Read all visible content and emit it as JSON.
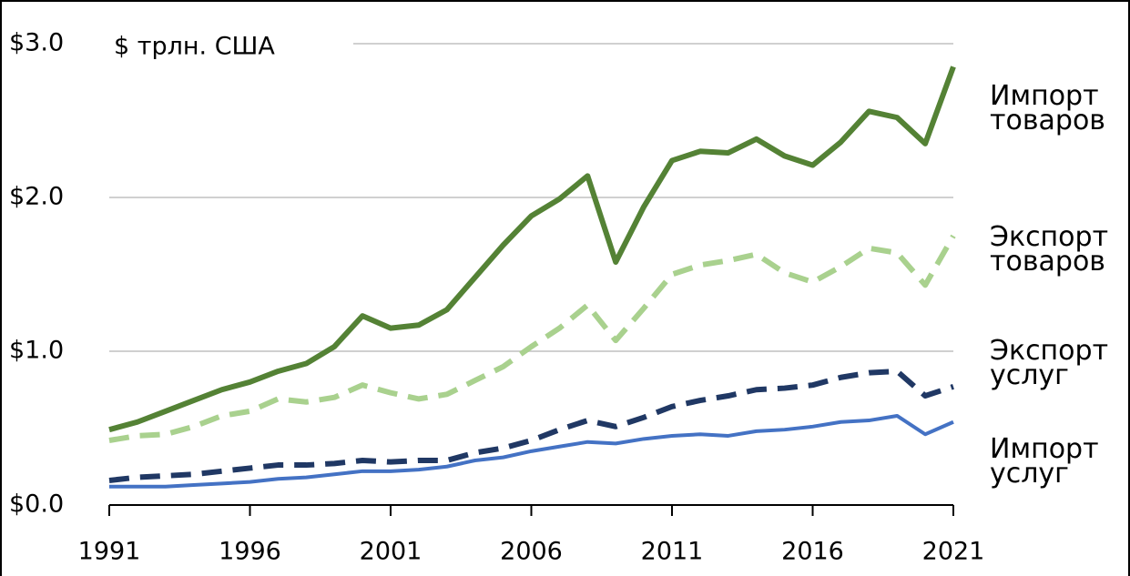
{
  "chart_data": {
    "type": "line",
    "ylabel": "$ трлн. США",
    "x": [
      1991,
      1992,
      1993,
      1994,
      1995,
      1996,
      1997,
      1998,
      1999,
      2000,
      2001,
      2002,
      2003,
      2004,
      2005,
      2006,
      2007,
      2008,
      2009,
      2010,
      2011,
      2012,
      2013,
      2014,
      2015,
      2016,
      2017,
      2018,
      2019,
      2020,
      2021
    ],
    "series": [
      {
        "name": "Импорт товаров",
        "color": "#548235",
        "dash": false,
        "values": [
          0.49,
          0.54,
          0.61,
          0.68,
          0.75,
          0.8,
          0.87,
          0.92,
          1.03,
          1.23,
          1.15,
          1.17,
          1.27,
          1.48,
          1.69,
          1.88,
          1.99,
          2.14,
          1.58,
          1.94,
          2.24,
          2.3,
          2.29,
          2.38,
          2.27,
          2.21,
          2.36,
          2.56,
          2.52,
          2.35,
          2.85
        ]
      },
      {
        "name": "Экспорт товаров",
        "color": "#a9d18e",
        "dash": true,
        "values": [
          0.42,
          0.45,
          0.46,
          0.51,
          0.58,
          0.61,
          0.69,
          0.67,
          0.7,
          0.78,
          0.73,
          0.69,
          0.72,
          0.81,
          0.9,
          1.03,
          1.15,
          1.3,
          1.07,
          1.28,
          1.5,
          1.56,
          1.59,
          1.63,
          1.51,
          1.45,
          1.55,
          1.67,
          1.64,
          1.43,
          1.75
        ]
      },
      {
        "name": "Экспорт услуг",
        "color": "#203864",
        "dash": true,
        "values": [
          0.16,
          0.18,
          0.19,
          0.2,
          0.22,
          0.24,
          0.26,
          0.26,
          0.27,
          0.29,
          0.28,
          0.29,
          0.29,
          0.34,
          0.37,
          0.42,
          0.49,
          0.55,
          0.51,
          0.57,
          0.64,
          0.68,
          0.71,
          0.75,
          0.76,
          0.78,
          0.83,
          0.86,
          0.87,
          0.71,
          0.77
        ]
      },
      {
        "name": "Импорт услуг",
        "color": "#4472c4",
        "dash": false,
        "values": [
          0.12,
          0.12,
          0.12,
          0.13,
          0.14,
          0.15,
          0.17,
          0.18,
          0.2,
          0.22,
          0.22,
          0.23,
          0.25,
          0.29,
          0.31,
          0.35,
          0.38,
          0.41,
          0.4,
          0.43,
          0.45,
          0.46,
          0.45,
          0.48,
          0.49,
          0.51,
          0.54,
          0.55,
          0.58,
          0.46,
          0.54
        ]
      }
    ],
    "xlim": [
      1991,
      2021
    ],
    "xticks": [
      1991,
      1996,
      2001,
      2006,
      2011,
      2016,
      2021
    ],
    "ylim": [
      0,
      3
    ],
    "yticks": [
      {
        "value": 0,
        "label": "$0.0"
      },
      {
        "value": 1,
        "label": "$1.0"
      },
      {
        "value": 2,
        "label": "$2.0"
      },
      {
        "value": 3,
        "label": "$3.0"
      }
    ],
    "grid": true
  }
}
